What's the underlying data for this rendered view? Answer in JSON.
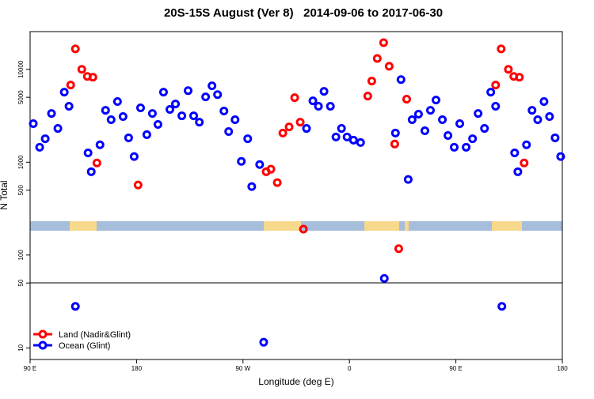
{
  "chart_data": {
    "type": "scatter",
    "title": "20S-15S August (Ver 8)   2014-09-06 to 2017-06-30",
    "xlabel": "Longitude (deg E)",
    "ylabel": "N Total",
    "xlim": [
      90,
      540
    ],
    "xticks": [
      {
        "value": 90,
        "label": "90 E"
      },
      180,
      {
        "value": 270,
        "label": "90 W"
      },
      {
        "value": 360,
        "label": "0"
      },
      {
        "value": 450,
        "label": "90 E"
      },
      {
        "value": 540,
        "label": "180"
      }
    ],
    "ylim": [
      7.5,
      25500
    ],
    "ylog": true,
    "yticks": [
      10,
      50,
      100,
      500,
      1000,
      5000,
      10000
    ],
    "legend": "lower left",
    "series": [
      {
        "name": "Land (Nadir&Glint)",
        "color": "#ff0000",
        "x": [
          124.3,
          128.3,
          133.7,
          138.4,
          143.1,
          146.5,
          181.3,
          289.6,
          293.6,
          299.0,
          303.7,
          309.0,
          313.7,
          318.4,
          321.1,
          375.5,
          378.9,
          383.5,
          388.9,
          393.6,
          398.3,
          401.7,
          408.4,
          483.6,
          488.3,
          494.4,
          499.0,
          503.7,
          507.7
        ],
        "values": [
          6780,
          16600,
          10000,
          8390,
          8220,
          982,
          568,
          790,
          840,
          603,
          2060,
          2400,
          4950,
          2700,
          190,
          5150,
          7470,
          13100,
          19400,
          10800,
          1570,
          117,
          4770,
          6780,
          16600,
          10000,
          8390,
          8220,
          982
        ]
      },
      {
        "name": "Ocean (Glint)",
        "color": "#0000ff",
        "x": [
          92.7,
          98.1,
          102.8,
          108.1,
          113.5,
          118.9,
          122.9,
          128.3,
          139.0,
          141.7,
          149.1,
          153.8,
          158.5,
          163.9,
          168.6,
          173.3,
          178.0,
          183.4,
          188.7,
          193.4,
          198.1,
          202.8,
          208.2,
          212.9,
          218.3,
          223.6,
          228.3,
          233.1,
          238.4,
          243.8,
          248.5,
          253.9,
          257.9,
          263.3,
          268.6,
          274.0,
          277.4,
          284.1,
          287.5,
          323.7,
          329.1,
          333.8,
          338.5,
          343.9,
          348.6,
          353.3,
          358.0,
          363.4,
          369.4,
          389.5,
          398.9,
          403.6,
          409.7,
          413.0,
          418.4,
          423.8,
          428.5,
          433.2,
          438.6,
          443.3,
          448.6,
          453.3,
          458.7,
          464.1,
          468.8,
          474.2,
          479.5,
          483.6,
          488.9,
          499.7,
          502.4,
          509.7,
          514.4,
          519.2,
          524.5,
          529.2,
          533.9,
          538.6
        ],
        "values": [
          2600,
          1450,
          1790,
          3350,
          2310,
          5680,
          4000,
          28,
          1260,
          790,
          1540,
          3620,
          2870,
          4500,
          3100,
          1830,
          1150,
          3850,
          1980,
          3350,
          2550,
          5680,
          3700,
          4240,
          3160,
          5900,
          3160,
          2700,
          5050,
          6640,
          5350,
          3560,
          2140,
          2870,
          1020,
          1790,
          546,
          944,
          11.5,
          2310,
          4580,
          4000,
          5790,
          4000,
          1870,
          2310,
          1870,
          1730,
          1630,
          56,
          2060,
          7760,
          652,
          2870,
          3290,
          2180,
          3620,
          4670,
          2870,
          1940,
          1450,
          2600,
          1450,
          1790,
          3350,
          2310,
          5680,
          4000,
          28,
          1260,
          790,
          1540,
          3620,
          2870,
          4500,
          3100,
          1830,
          1150
        ]
      }
    ]
  }
}
